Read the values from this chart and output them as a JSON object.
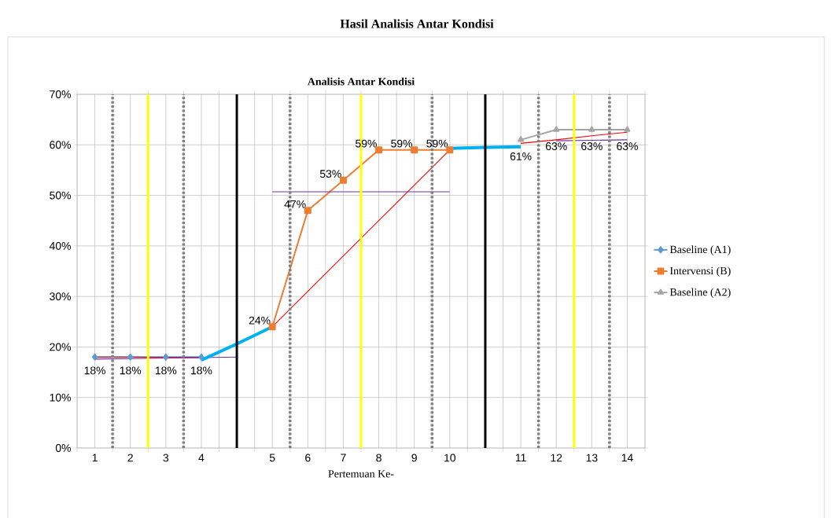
{
  "chart_data": {
    "type": "line",
    "title": "Hasil Analisis Antar Kondisi",
    "subtitle": "Analisis Antar Kondisi",
    "xlabel": "Pertemuan Ke-",
    "categories": [
      "1",
      "2",
      "3",
      "4",
      null,
      "5",
      "6",
      "7",
      "8",
      "9",
      "10",
      null,
      "11",
      "12",
      "13",
      "14"
    ],
    "series": [
      {
        "name": "Baseline (A1)",
        "color": "#5b9bd5",
        "marker": "diamond",
        "values": [
          18,
          18,
          18,
          18,
          null,
          null,
          null,
          null,
          null,
          null,
          null,
          null,
          null,
          null,
          null,
          null
        ],
        "value_labels": [
          "18%",
          "18%",
          "18%",
          "18%",
          null,
          null,
          null,
          null,
          null,
          null,
          null,
          null,
          null,
          null,
          null,
          null
        ]
      },
      {
        "name": "Intervensi (B)",
        "color": "#ed7d31",
        "marker": "square",
        "values": [
          null,
          null,
          null,
          null,
          null,
          24,
          47,
          53,
          59,
          59,
          59,
          null,
          null,
          null,
          null,
          null
        ],
        "value_labels": [
          null,
          null,
          null,
          null,
          null,
          "24%",
          "47%",
          "53%",
          "59%",
          "59%",
          "59%",
          null,
          null,
          null,
          null,
          null
        ]
      },
      {
        "name": "Baseline (A2)",
        "color": "#a5a5a5",
        "marker": "triangle",
        "values": [
          null,
          null,
          null,
          null,
          null,
          null,
          null,
          null,
          null,
          null,
          null,
          null,
          61,
          63,
          63,
          63
        ],
        "value_labels": [
          null,
          null,
          null,
          null,
          null,
          null,
          null,
          null,
          null,
          null,
          null,
          null,
          "61%",
          "63%",
          "63%",
          "63%"
        ]
      },
      {
        "color": "#ff0000",
        "marker": "none",
        "values": [
          18,
          18,
          17.9,
          17.9,
          null,
          null,
          null,
          null,
          null,
          null,
          null,
          null,
          null,
          null,
          null,
          null
        ]
      },
      {
        "color": "#7030a0",
        "marker": "none",
        "values": [
          17.6,
          17.7,
          17.8,
          17.9,
          18,
          null,
          null,
          null,
          null,
          null,
          null,
          null,
          null,
          null,
          null,
          null
        ]
      },
      {
        "color": "#00b0f0",
        "marker": "none",
        "values": [
          null,
          null,
          null,
          17.4,
          20.6,
          24,
          null,
          null,
          null,
          null,
          null,
          null,
          null,
          null,
          null,
          null
        ]
      },
      {
        "color": "#7030a0",
        "marker": "none",
        "values": [
          null,
          null,
          null,
          null,
          null,
          50.7,
          50.7,
          50.7,
          50.7,
          50.7,
          50.7,
          null,
          null,
          null,
          null,
          null
        ]
      },
      {
        "color": "#ff0000",
        "marker": "none",
        "values": [
          null,
          null,
          null,
          null,
          null,
          24,
          31,
          38,
          45,
          52,
          59,
          null,
          null,
          null,
          null,
          null
        ]
      },
      {
        "color": "#00b0f0",
        "marker": "none",
        "values": [
          null,
          null,
          null,
          null,
          null,
          null,
          null,
          null,
          null,
          null,
          59.3,
          59.5,
          59.6,
          null,
          null,
          null
        ]
      },
      {
        "color": "#7030a0",
        "marker": "none",
        "values": [
          null,
          null,
          null,
          null,
          null,
          null,
          null,
          null,
          null,
          null,
          null,
          null,
          null,
          60.8,
          60.9,
          61
        ]
      },
      {
        "color": "#ff0000",
        "marker": "none",
        "values": [
          null,
          null,
          null,
          null,
          null,
          null,
          null,
          null,
          null,
          null,
          null,
          null,
          60.3,
          61,
          61.8,
          62.5
        ]
      }
    ],
    "ylim": [
      0,
      70
    ],
    "yticks": [
      {
        "value": 0,
        "label": "0%"
      },
      {
        "value": 10,
        "label": "10%"
      },
      {
        "value": 20,
        "label": "20%"
      },
      {
        "value": 30,
        "label": "30%"
      },
      {
        "value": 40,
        "label": "40%"
      },
      {
        "value": 50,
        "label": "50%"
      },
      {
        "value": 60,
        "label": "60%"
      },
      {
        "value": 70,
        "label": "70%"
      }
    ],
    "grid": true,
    "legend": "right"
  }
}
